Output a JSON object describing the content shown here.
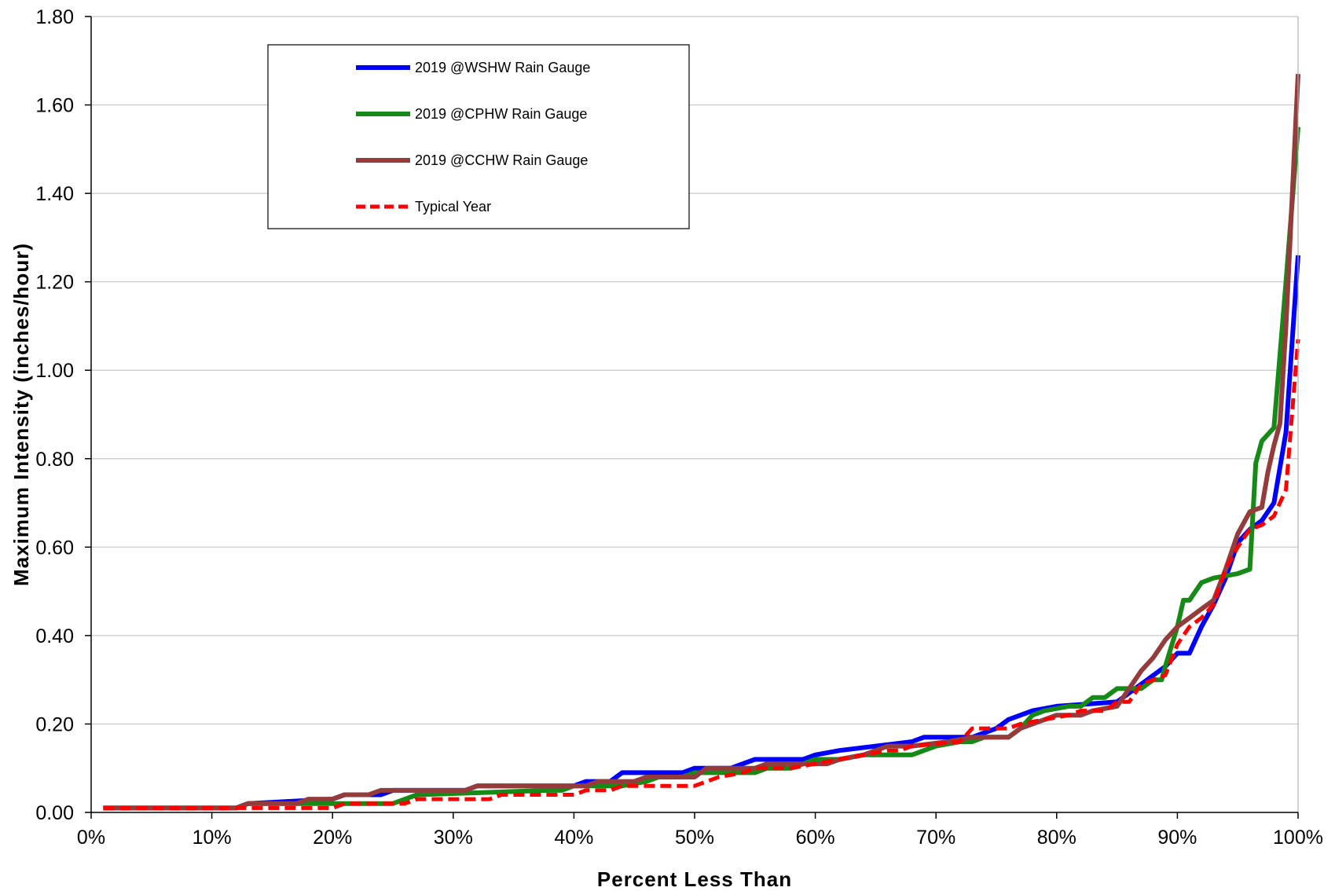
{
  "chart_data": {
    "type": "line",
    "xlabel": "Percent Less Than",
    "ylabel": "Maximum Intensity (inches/hour)",
    "xlim": [
      0,
      100
    ],
    "ylim": [
      0,
      1.8
    ],
    "x_ticks": [
      0,
      10,
      20,
      30,
      40,
      50,
      60,
      70,
      80,
      90,
      100
    ],
    "x_tick_labels": [
      "0%",
      "10%",
      "20%",
      "30%",
      "40%",
      "50%",
      "60%",
      "70%",
      "80%",
      "90%",
      "100%"
    ],
    "y_ticks": [
      0,
      0.2,
      0.4,
      0.6,
      0.8,
      1.0,
      1.2,
      1.4,
      1.6,
      1.8
    ],
    "y_tick_labels": [
      "0.00",
      "0.20",
      "0.40",
      "0.60",
      "0.80",
      "1.00",
      "1.20",
      "1.40",
      "1.60",
      "1.80"
    ],
    "grid": "horizontal",
    "legend_position": "top-left",
    "series": [
      {
        "name": "2019 @WSHW Rain Gauge",
        "color": "#0000ff",
        "style": "solid",
        "points": [
          [
            1,
            0.01
          ],
          [
            11,
            0.01
          ],
          [
            12,
            0.01
          ],
          [
            13,
            0.02
          ],
          [
            20,
            0.03
          ],
          [
            21,
            0.04
          ],
          [
            24,
            0.04
          ],
          [
            25,
            0.05
          ],
          [
            31,
            0.05
          ],
          [
            32,
            0.06
          ],
          [
            40,
            0.06
          ],
          [
            41,
            0.07
          ],
          [
            43,
            0.07
          ],
          [
            44,
            0.09
          ],
          [
            49,
            0.09
          ],
          [
            50,
            0.1
          ],
          [
            53,
            0.1
          ],
          [
            54,
            0.11
          ],
          [
            55,
            0.12
          ],
          [
            59,
            0.12
          ],
          [
            60,
            0.13
          ],
          [
            62,
            0.14
          ],
          [
            68,
            0.16
          ],
          [
            69,
            0.17
          ],
          [
            73,
            0.17
          ],
          [
            74,
            0.18
          ],
          [
            75,
            0.19
          ],
          [
            76,
            0.21
          ],
          [
            78,
            0.23
          ],
          [
            80,
            0.24
          ],
          [
            85,
            0.25
          ],
          [
            86,
            0.27
          ],
          [
            88,
            0.31
          ],
          [
            89,
            0.33
          ],
          [
            90,
            0.36
          ],
          [
            91,
            0.36
          ],
          [
            92,
            0.42
          ],
          [
            93,
            0.47
          ],
          [
            94,
            0.53
          ],
          [
            95,
            0.61
          ],
          [
            96,
            0.64
          ],
          [
            97,
            0.66
          ],
          [
            98,
            0.7
          ],
          [
            99,
            0.86
          ],
          [
            100,
            1.26
          ]
        ]
      },
      {
        "name": "2019 @CPHW Rain Gauge",
        "color": "#168a16",
        "style": "solid",
        "points": [
          [
            1,
            0.01
          ],
          [
            12,
            0.01
          ],
          [
            13,
            0.02
          ],
          [
            20,
            0.02
          ],
          [
            25,
            0.02
          ],
          [
            26,
            0.03
          ],
          [
            27,
            0.04
          ],
          [
            38,
            0.05
          ],
          [
            39,
            0.05
          ],
          [
            40,
            0.06
          ],
          [
            44,
            0.06
          ],
          [
            46,
            0.07
          ],
          [
            47,
            0.08
          ],
          [
            49,
            0.08
          ],
          [
            50,
            0.09
          ],
          [
            55,
            0.09
          ],
          [
            56,
            0.1
          ],
          [
            58,
            0.1
          ],
          [
            60,
            0.12
          ],
          [
            62,
            0.12
          ],
          [
            64,
            0.13
          ],
          [
            68,
            0.13
          ],
          [
            69,
            0.14
          ],
          [
            70,
            0.15
          ],
          [
            72,
            0.16
          ],
          [
            73,
            0.16
          ],
          [
            74,
            0.17
          ],
          [
            76,
            0.17
          ],
          [
            77,
            0.19
          ],
          [
            78,
            0.22
          ],
          [
            79,
            0.23
          ],
          [
            81,
            0.24
          ],
          [
            82,
            0.24
          ],
          [
            83,
            0.26
          ],
          [
            84,
            0.26
          ],
          [
            85,
            0.28
          ],
          [
            86,
            0.28
          ],
          [
            87,
            0.28
          ],
          [
            88,
            0.3
          ],
          [
            88.7,
            0.3
          ],
          [
            89,
            0.33
          ],
          [
            90,
            0.42
          ],
          [
            90.5,
            0.48
          ],
          [
            91,
            0.48
          ],
          [
            92,
            0.52
          ],
          [
            93,
            0.53
          ],
          [
            95,
            0.54
          ],
          [
            96,
            0.55
          ],
          [
            96.5,
            0.79
          ],
          [
            97,
            0.84
          ],
          [
            98,
            0.87
          ],
          [
            99,
            1.2
          ],
          [
            100,
            1.55
          ]
        ]
      },
      {
        "name": "2019 @CCHW Rain Gauge",
        "color": "#943c3c",
        "style": "solid",
        "points": [
          [
            1,
            0.01
          ],
          [
            12,
            0.01
          ],
          [
            13,
            0.02
          ],
          [
            17,
            0.02
          ],
          [
            18,
            0.03
          ],
          [
            20,
            0.03
          ],
          [
            21,
            0.04
          ],
          [
            23,
            0.04
          ],
          [
            24,
            0.05
          ],
          [
            31,
            0.05
          ],
          [
            32,
            0.06
          ],
          [
            41,
            0.06
          ],
          [
            42,
            0.07
          ],
          [
            45,
            0.07
          ],
          [
            46,
            0.08
          ],
          [
            50,
            0.08
          ],
          [
            51,
            0.1
          ],
          [
            55,
            0.1
          ],
          [
            56,
            0.11
          ],
          [
            61,
            0.11
          ],
          [
            62,
            0.12
          ],
          [
            64,
            0.13
          ],
          [
            65,
            0.14
          ],
          [
            66,
            0.15
          ],
          [
            67,
            0.15
          ],
          [
            68,
            0.15
          ],
          [
            71,
            0.16
          ],
          [
            73,
            0.17
          ],
          [
            76,
            0.17
          ],
          [
            77,
            0.19
          ],
          [
            79,
            0.21
          ],
          [
            80,
            0.22
          ],
          [
            82,
            0.22
          ],
          [
            83,
            0.23
          ],
          [
            85,
            0.24
          ],
          [
            86,
            0.28
          ],
          [
            87,
            0.32
          ],
          [
            88,
            0.35
          ],
          [
            89,
            0.39
          ],
          [
            90,
            0.42
          ],
          [
            91,
            0.44
          ],
          [
            92,
            0.46
          ],
          [
            93,
            0.48
          ],
          [
            94,
            0.55
          ],
          [
            95,
            0.63
          ],
          [
            96,
            0.68
          ],
          [
            97,
            0.69
          ],
          [
            97.5,
            0.77
          ],
          [
            98,
            0.83
          ],
          [
            98.5,
            0.88
          ],
          [
            99,
            1.1
          ],
          [
            100,
            1.67
          ]
        ]
      },
      {
        "name": "Typical Year",
        "color": "#ff0000",
        "style": "dashed",
        "points": [
          [
            1,
            0.01
          ],
          [
            12,
            0.01
          ],
          [
            13,
            0.01
          ],
          [
            20,
            0.01
          ],
          [
            21,
            0.02
          ],
          [
            25,
            0.02
          ],
          [
            26,
            0.02
          ],
          [
            27,
            0.03
          ],
          [
            33,
            0.03
          ],
          [
            34,
            0.04
          ],
          [
            40,
            0.04
          ],
          [
            41,
            0.05
          ],
          [
            43,
            0.05
          ],
          [
            44,
            0.06
          ],
          [
            50,
            0.06
          ],
          [
            51,
            0.07
          ],
          [
            52,
            0.08
          ],
          [
            54,
            0.09
          ],
          [
            55,
            0.1
          ],
          [
            58,
            0.1
          ],
          [
            60,
            0.11
          ],
          [
            64,
            0.13
          ],
          [
            66,
            0.14
          ],
          [
            67,
            0.14
          ],
          [
            68,
            0.15
          ],
          [
            72,
            0.16
          ],
          [
            73,
            0.19
          ],
          [
            76,
            0.19
          ],
          [
            77,
            0.2
          ],
          [
            79,
            0.21
          ],
          [
            81,
            0.22
          ],
          [
            82,
            0.23
          ],
          [
            84,
            0.23
          ],
          [
            85,
            0.25
          ],
          [
            86,
            0.25
          ],
          [
            87,
            0.29
          ],
          [
            89,
            0.31
          ],
          [
            90,
            0.38
          ],
          [
            91,
            0.42
          ],
          [
            92,
            0.44
          ],
          [
            93,
            0.47
          ],
          [
            94,
            0.55
          ],
          [
            95,
            0.6
          ],
          [
            96,
            0.64
          ],
          [
            97,
            0.65
          ],
          [
            98,
            0.67
          ],
          [
            99,
            0.73
          ],
          [
            99.5,
            0.9
          ],
          [
            100,
            1.07
          ]
        ]
      }
    ]
  }
}
